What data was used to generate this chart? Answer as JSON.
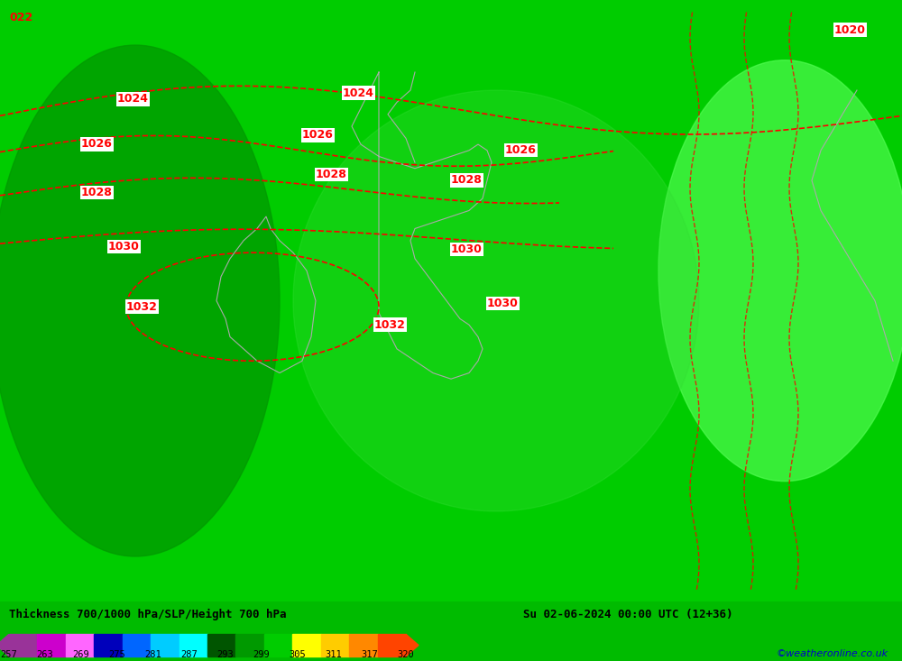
{
  "title_left": "Thickness 700/1000 hPa/SLP/Height 700 hPa",
  "title_right": "Su 02-06-2024 00:00 UTC (12+36)",
  "credit": "©weatheronline.co.uk",
  "colorbar_values": [
    257,
    263,
    269,
    275,
    281,
    287,
    293,
    299,
    305,
    311,
    317,
    320
  ],
  "seg_colors": [
    "#993399",
    "#CC00CC",
    "#FF66FF",
    "#0000BB",
    "#0066FF",
    "#00CCFF",
    "#00FFFF",
    "#005500",
    "#009900",
    "#00CC00",
    "#FFFF00",
    "#FFCC00",
    "#FF8800",
    "#FF4400"
  ],
  "background_color": "#00CC00",
  "fig_width": 10.0,
  "fig_height": 7.33
}
